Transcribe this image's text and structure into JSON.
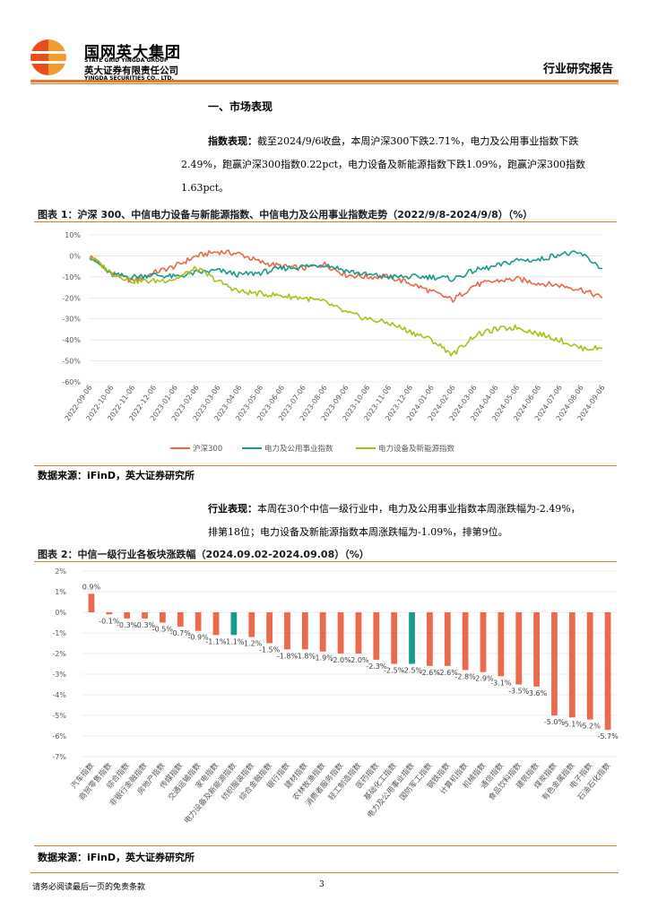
{
  "header": {
    "brand_cn": "国网英大集团",
    "brand_en": "STATE GRID YINGDA GROUP",
    "company_cn": "英大证券有限责任公司",
    "company_en": "YINGDA SECURITIES CO., LTD.",
    "report_type": "行业研究报告",
    "colors": {
      "accent": "#e87722",
      "logo_red": "#e84d1c",
      "logo_orange": "#f39c2c"
    }
  },
  "section_title": "一、市场表现",
  "para1": {
    "label": "指数表现：",
    "line1": "截至2024/9/6收盘，本周沪深300下跌2.71%，电力及公用事业指数下跌",
    "line2": "2.49%，跑赢沪深300指数0.22pct，电力设备及新能源指数下跌1.09%，跑赢沪深300指数",
    "line3": "1.63pct。"
  },
  "fig1": {
    "title": "图表 1：沪深 300、中信电力设备与新能源指数、中信电力及公用事业指数走势（2022/9/8-2024/9/8）（%）"
  },
  "source1": "数据来源：iFinD，英大证券研究所",
  "para2": {
    "label": "行业表现：",
    "line1": "本周在30个中信一级行业中，电力及公用事业指数本周涨跌幅为-2.49%，",
    "line2": "排第18位；电力设备及新能源指数本周涨跌幅为-1.09%，排第9位。"
  },
  "fig2": {
    "title": "图表 2：中信一级行业各板块涨跌幅（2024.09.02-2024.09.08）（%）"
  },
  "source2": "数据来源：iFinD，英大证券研究所",
  "footer": {
    "disclaimer": "请务必阅读最后一页的免责条款",
    "page": "3"
  },
  "chart_data": [
    {
      "type": "line",
      "title": "沪深 300、中信电力设备与新能源指数、中信电力及公用事业指数走势（2022/9/8-2024/9/8）",
      "ylabel": "%",
      "ylim": [
        -60,
        10
      ],
      "yticks": [
        "10%",
        "0%",
        "-10%",
        "-20%",
        "-30%",
        "-40%",
        "-50%",
        "-60%"
      ],
      "x": [
        "2022-09-06",
        "2022-10-06",
        "2022-11-06",
        "2022-12-06",
        "2023-01-06",
        "2023-02-06",
        "2023-03-06",
        "2023-04-06",
        "2023-05-06",
        "2023-06-06",
        "2023-07-06",
        "2023-08-06",
        "2023-09-06",
        "2023-10-06",
        "2023-11-06",
        "2023-12-06",
        "2024-01-06",
        "2024-02-06",
        "2024-03-06",
        "2024-04-06",
        "2024-05-06",
        "2024-06-06",
        "2024-07-06",
        "2024-08-06",
        "2024-09-06"
      ],
      "series": [
        {
          "name": "沪深300",
          "color": "#e8684a",
          "values": [
            0,
            -8,
            -12,
            -8,
            -5,
            0,
            2,
            1,
            -3,
            -5,
            -6,
            -4,
            -9,
            -10,
            -10,
            -13,
            -17,
            -21,
            -14,
            -12,
            -11,
            -13,
            -14,
            -16,
            -20
          ]
        },
        {
          "name": "电力及公用事业指数",
          "color": "#1a9a8c",
          "values": [
            0,
            -9,
            -10,
            -9,
            -10,
            -8,
            -7,
            -9,
            -8,
            -6,
            -5,
            -4,
            -7,
            -9,
            -10,
            -10,
            -10,
            -11,
            -7,
            -5,
            -2,
            -2,
            1,
            1,
            -6
          ]
        },
        {
          "name": "电力设备及新能源指数",
          "color": "#a6c11a",
          "values": [
            0,
            -8,
            -12,
            -12,
            -11,
            -6,
            -12,
            -17,
            -18,
            -19,
            -20,
            -22,
            -27,
            -30,
            -32,
            -36,
            -40,
            -47,
            -38,
            -35,
            -34,
            -37,
            -40,
            -44,
            -44
          ]
        }
      ]
    },
    {
      "type": "bar",
      "title": "中信一级行业各板块涨跌幅（2024.09.02-2024.09.08）",
      "ylabel": "%",
      "ylim": [
        -7,
        2
      ],
      "yticks": [
        "2%",
        "1%",
        "0%",
        "-1%",
        "-2%",
        "-3%",
        "-4%",
        "-5%",
        "-6%",
        "-7%"
      ],
      "categories": [
        "汽车指数",
        "商贸零售指数",
        "综合指数",
        "非银行金融指数",
        "房地产指数",
        "传媒指数",
        "交通运输指数",
        "家电指数",
        "电力设备及新能源指数",
        "纺织服装指数",
        "综合金融指数",
        "银行指数",
        "建材指数",
        "农林牧渔指数",
        "消费者服务指数",
        "轻工制造指数",
        "医药指数",
        "基础化工指数",
        "电力及公用事业指数",
        "国防军工指数",
        "钢铁指数",
        "计算机指数",
        "机械指数",
        "通信指数",
        "食品饮料指数",
        "建筑指数",
        "煤炭指数",
        "有色金属指数",
        "电子指数",
        "石油石化指数"
      ],
      "values": [
        0.9,
        -0.1,
        -0.3,
        -0.3,
        -0.5,
        -0.7,
        -0.9,
        -1.1,
        -1.1,
        -1.2,
        -1.5,
        -1.8,
        -1.8,
        -1.9,
        -2.0,
        -2.0,
        -2.3,
        -2.5,
        -2.5,
        -2.6,
        -2.6,
        -2.8,
        -2.9,
        -3.1,
        -3.5,
        -3.6,
        -5.0,
        -5.1,
        -5.2,
        -5.7
      ],
      "data_labels": [
        "0.9%",
        "-0.1%",
        "-0.3%",
        "-0.3%",
        "-0.5%",
        "-0.7%",
        "-0.9%",
        "-1.1%",
        "-1.1%",
        "-1.2%",
        "-1.5%",
        "-1.8%",
        "-1.8%",
        "-1.9%",
        "-2.0%",
        "-2.0%",
        "-2.3%",
        "-2.5%",
        "-2.5%",
        "-2.6%",
        "-2.6%",
        "-2.8%",
        "-2.9%",
        "-3.1%",
        "-3.5%",
        "-3.6%",
        "-5.0%",
        "-5.1%",
        "-5.2%",
        "-5.7%"
      ],
      "highlight": [
        "电力设备及新能源指数",
        "电力及公用事业指数"
      ],
      "colors": {
        "default": "#ea6a4b",
        "highlight": "#1a9a8c"
      }
    }
  ]
}
